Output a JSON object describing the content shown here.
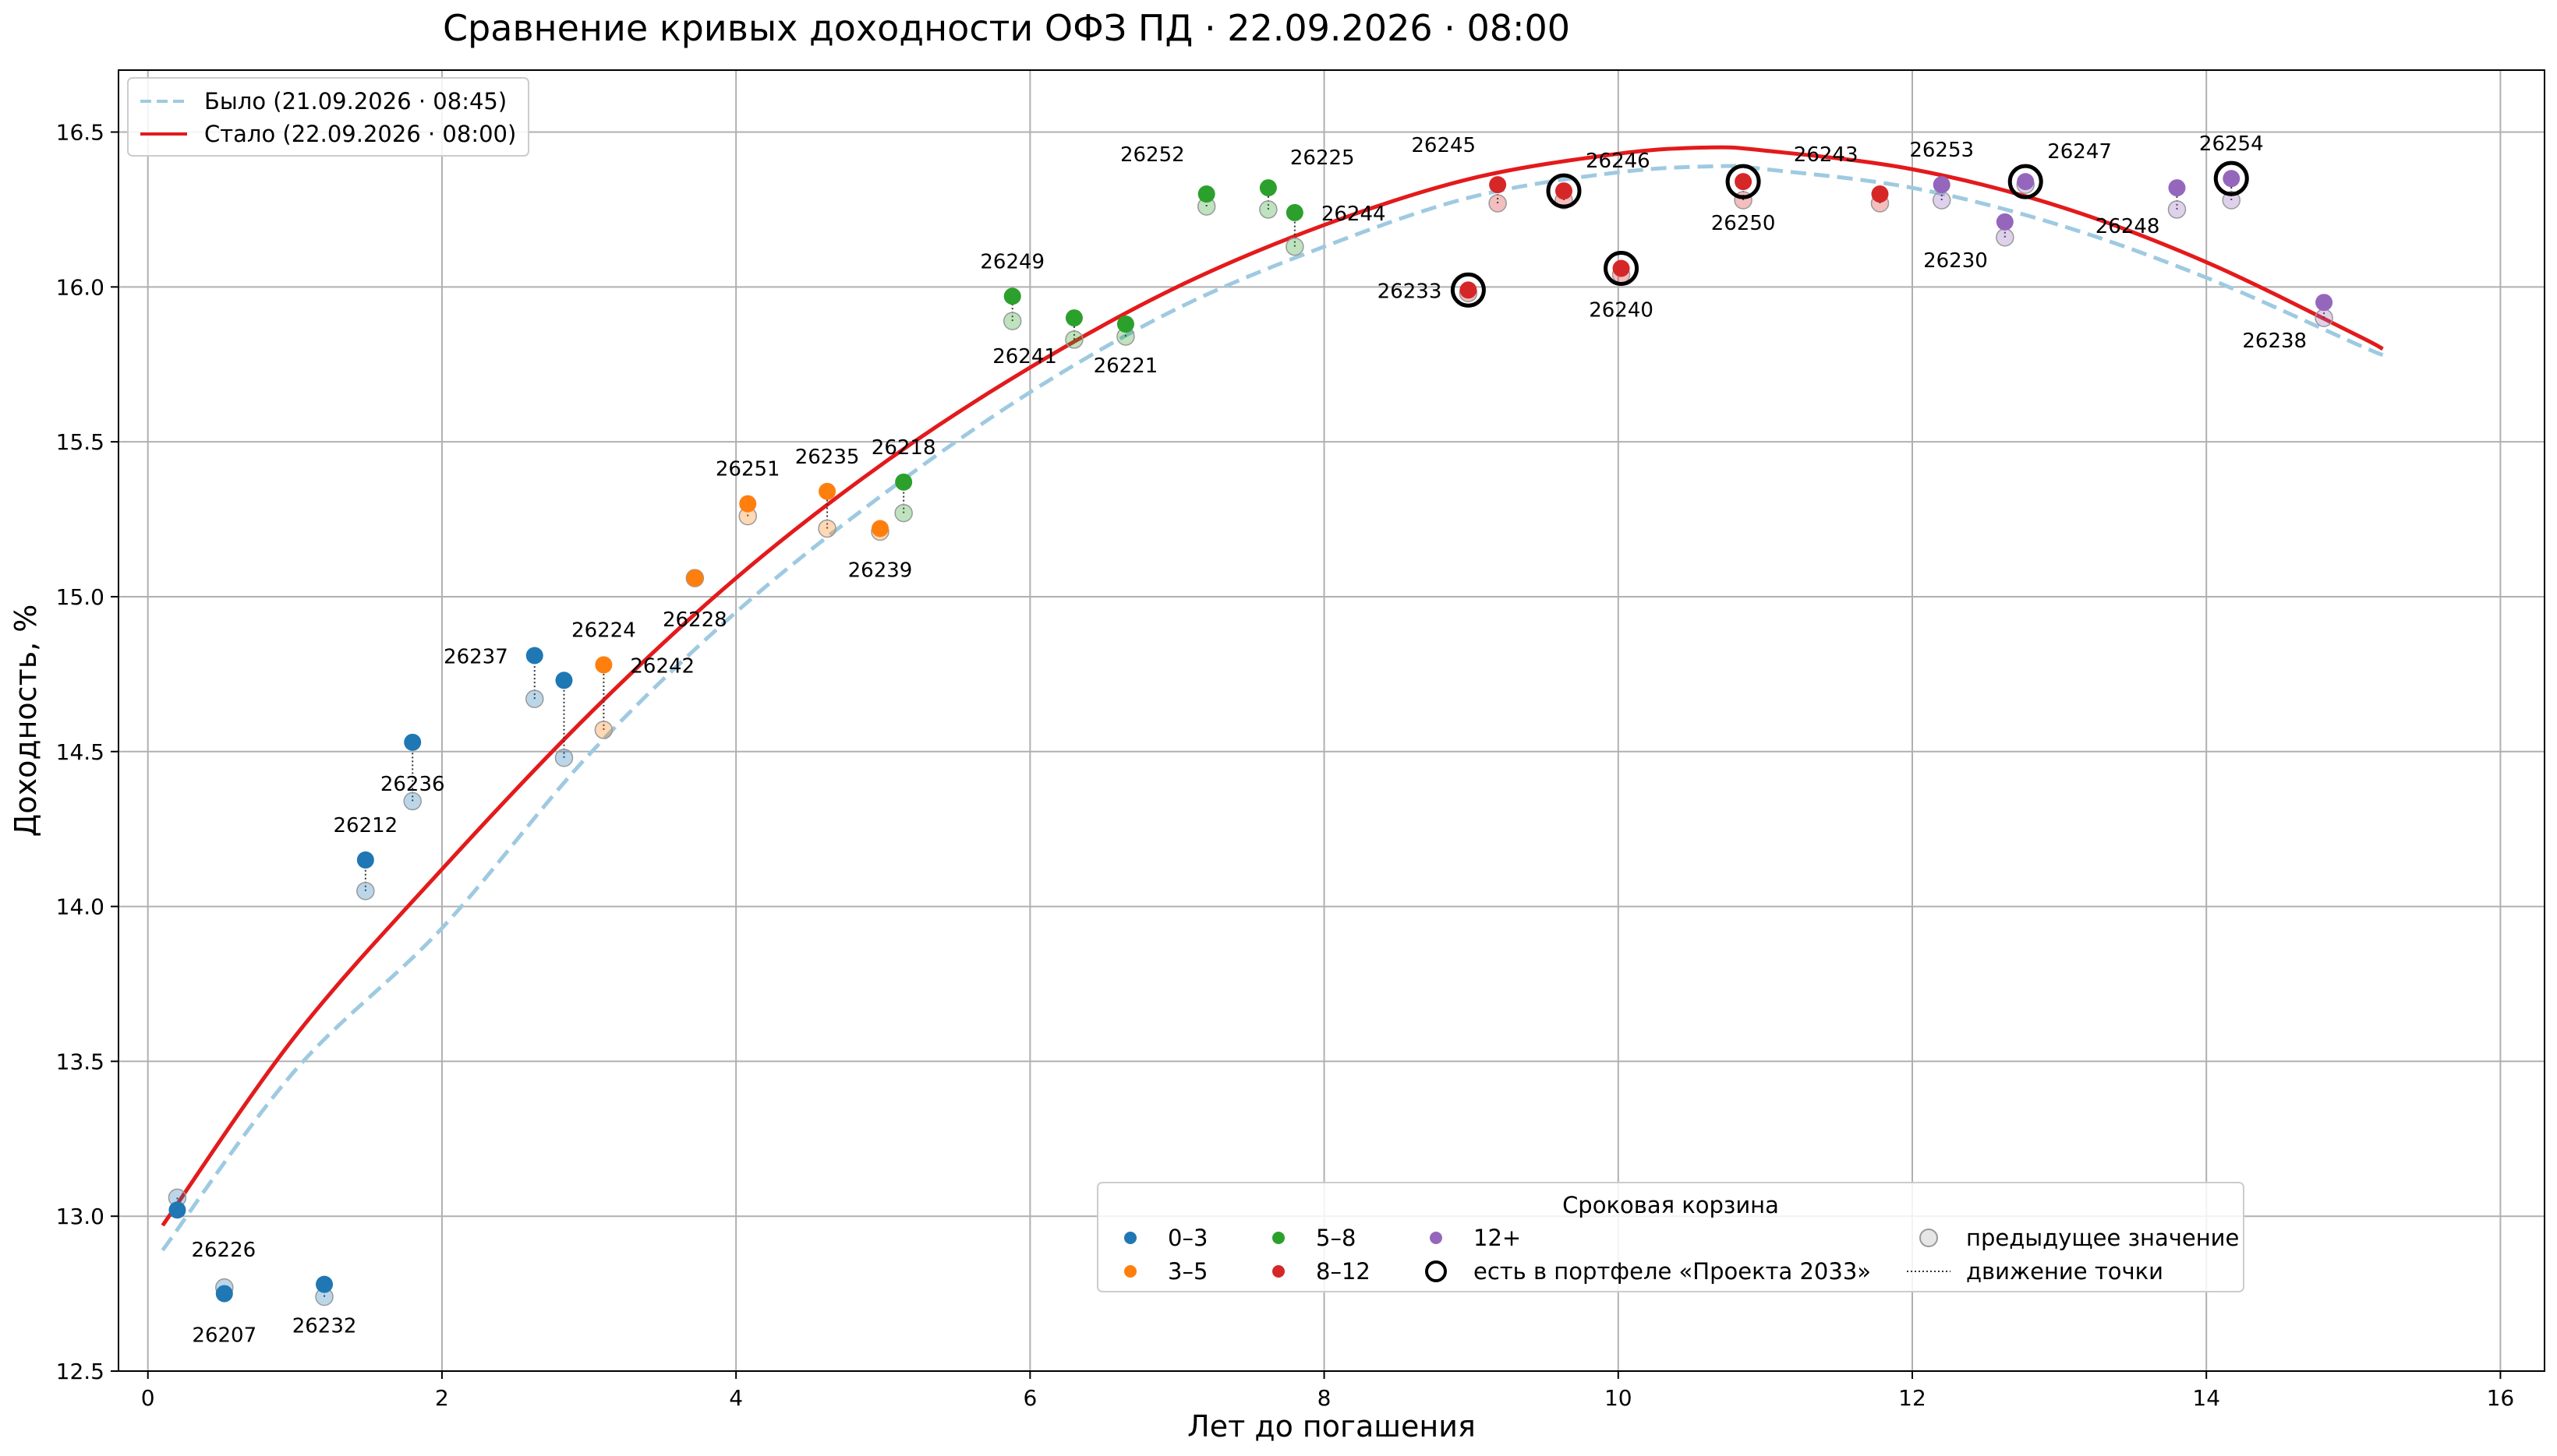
{
  "chart_data": {
    "type": "scatter",
    "title": "Сравнение кривых доходности ОФЗ ПД · 22.09.2026 · 08:00",
    "xlabel": "Лет до погашения",
    "ylabel": "Доходность, %",
    "xlim": [
      -0.2,
      16.3
    ],
    "ylim": [
      12.5,
      16.7
    ],
    "xticks": [
      "0",
      "2",
      "4",
      "6",
      "8",
      "10",
      "12",
      "14",
      "16"
    ],
    "xtick_values": [
      0,
      2,
      4,
      6,
      8,
      10,
      12,
      14,
      16
    ],
    "yticks": [
      "12.5",
      "13.0",
      "13.5",
      "14.0",
      "14.5",
      "15.0",
      "15.5",
      "16.0",
      "16.5"
    ],
    "ytick_values": [
      12.5,
      13.0,
      13.5,
      14.0,
      14.5,
      15.0,
      15.5,
      16.0,
      16.5
    ],
    "grid": true,
    "curves": [
      {
        "name": "Было (21.09.2026 · 08:45)",
        "style": "dashed",
        "color": "#9ecae1",
        "x": [
          0.1,
          1,
          2,
          3,
          4,
          5,
          6,
          7,
          8,
          9,
          10,
          10.7,
          11,
          12,
          13,
          14,
          15,
          15.2
        ],
        "y": [
          12.89,
          13.47,
          13.93,
          14.49,
          14.95,
          15.33,
          15.66,
          15.93,
          16.13,
          16.29,
          16.37,
          16.39,
          16.38,
          16.32,
          16.2,
          16.03,
          15.82,
          15.78
        ]
      },
      {
        "name": "Стало (22.09.2026 · 08:00)",
        "style": "solid",
        "color": "#e31a1c",
        "x": [
          0.1,
          1,
          2,
          3,
          4,
          5,
          6,
          7,
          8,
          9,
          10,
          10.6,
          11,
          12,
          13,
          14,
          15,
          15.2
        ],
        "y": [
          12.97,
          13.58,
          14.12,
          14.62,
          15.06,
          15.43,
          15.74,
          16.0,
          16.2,
          16.35,
          16.43,
          16.45,
          16.44,
          16.38,
          16.26,
          16.08,
          15.85,
          15.8
        ]
      }
    ],
    "points": [
      {
        "label": "26226",
        "x": 0.2,
        "prev": 13.06,
        "curr": 13.02,
        "bucket": "0–3",
        "label_pos": "below-right"
      },
      {
        "label": "26207",
        "x": 0.52,
        "prev": 12.77,
        "curr": 12.75,
        "bucket": "0–3",
        "label_pos": "below"
      },
      {
        "label": "26232",
        "x": 1.2,
        "prev": 12.74,
        "curr": 12.78,
        "bucket": "0–3",
        "label_pos": "below"
      },
      {
        "label": "26212",
        "x": 1.48,
        "prev": 14.05,
        "curr": 14.15,
        "bucket": "0–3",
        "label_pos": "above"
      },
      {
        "label": "26236",
        "x": 1.8,
        "prev": 14.34,
        "curr": 14.53,
        "bucket": "0–3",
        "label_pos": "below"
      },
      {
        "label": "26237",
        "x": 2.63,
        "prev": 14.67,
        "curr": 14.81,
        "bucket": "0–3",
        "label_pos": "left"
      },
      {
        "label": "",
        "x": 2.83,
        "prev": 14.48,
        "curr": 14.73,
        "bucket": "0–3",
        "label_pos": "none"
      },
      {
        "label": "26224",
        "x": 3.1,
        "prev": 14.57,
        "curr": 14.78,
        "bucket": "3–5",
        "label_pos": "above"
      },
      {
        "label": "26242",
        "x": 3.1,
        "prev": 14.57,
        "curr": 14.78,
        "bucket": "3–5",
        "label_pos": "right",
        "hidden": true
      },
      {
        "label": "26228",
        "x": 3.72,
        "prev": 15.06,
        "curr": 15.06,
        "bucket": "3–5",
        "label_pos": "below"
      },
      {
        "label": "26251",
        "x": 4.08,
        "prev": 15.26,
        "curr": 15.3,
        "bucket": "3–5",
        "label_pos": "above"
      },
      {
        "label": "26235",
        "x": 4.62,
        "prev": 15.22,
        "curr": 15.34,
        "bucket": "3–5",
        "label_pos": "above"
      },
      {
        "label": "26239",
        "x": 4.98,
        "prev": 15.21,
        "curr": 15.22,
        "bucket": "3–5",
        "label_pos": "below"
      },
      {
        "label": "26218",
        "x": 5.14,
        "prev": 15.27,
        "curr": 15.37,
        "bucket": "5–8",
        "label_pos": "above"
      },
      {
        "label": "26249",
        "x": 5.88,
        "prev": 15.89,
        "curr": 15.97,
        "bucket": "5–8",
        "label_pos": "above"
      },
      {
        "label": "26241",
        "x": 6.3,
        "prev": 15.83,
        "curr": 15.9,
        "bucket": "5–8",
        "label_pos": "below-left"
      },
      {
        "label": "26221",
        "x": 6.65,
        "prev": 15.84,
        "curr": 15.88,
        "bucket": "5–8",
        "label_pos": "below"
      },
      {
        "label": "26252",
        "x": 7.2,
        "prev": 16.26,
        "curr": 16.3,
        "bucket": "5–8",
        "label_pos": "above-left"
      },
      {
        "label": "26225",
        "x": 7.62,
        "prev": 16.25,
        "curr": 16.32,
        "bucket": "5–8",
        "label_pos": "above-right"
      },
      {
        "label": "26244",
        "x": 7.8,
        "prev": 16.13,
        "curr": 16.24,
        "bucket": "5–8",
        "label_pos": "right"
      },
      {
        "label": "26233",
        "x": 8.98,
        "prev": 15.98,
        "curr": 15.99,
        "bucket": "8–12",
        "label_pos": "left",
        "portfolio": true
      },
      {
        "label": "26245",
        "x": 9.18,
        "prev": 16.27,
        "curr": 16.33,
        "bucket": "8–12",
        "label_pos": "above-left"
      },
      {
        "label": "26246",
        "x": 9.63,
        "prev": 16.28,
        "curr": 16.31,
        "bucket": "8–12",
        "label_pos": "above-right",
        "portfolio": true
      },
      {
        "label": "26240",
        "x": 10.02,
        "prev": 16.04,
        "curr": 16.06,
        "bucket": "8–12",
        "label_pos": "below",
        "portfolio": true
      },
      {
        "label": "26250",
        "x": 10.85,
        "prev": 16.28,
        "curr": 16.34,
        "bucket": "8–12",
        "label_pos": "below",
        "portfolio": true
      },
      {
        "label": "26243",
        "x": 11.78,
        "prev": 16.27,
        "curr": 16.3,
        "bucket": "8–12",
        "label_pos": "above-left"
      },
      {
        "label": "26253",
        "x": 12.2,
        "prev": 16.28,
        "curr": 16.33,
        "bucket": "12+",
        "label_pos": "above"
      },
      {
        "label": "26230",
        "x": 12.63,
        "prev": 16.16,
        "curr": 16.21,
        "bucket": "12+",
        "label_pos": "below-left"
      },
      {
        "label": "26247",
        "x": 12.77,
        "prev": 16.33,
        "curr": 16.34,
        "bucket": "12+",
        "label_pos": "above-right",
        "portfolio": true
      },
      {
        "label": "26248",
        "x": 13.8,
        "prev": 16.25,
        "curr": 16.32,
        "bucket": "12+",
        "label_pos": "below-left"
      },
      {
        "label": "26254",
        "x": 14.17,
        "prev": 16.28,
        "curr": 16.35,
        "bucket": "12+",
        "label_pos": "above",
        "portfolio": true
      },
      {
        "label": "26238",
        "x": 14.8,
        "prev": 15.9,
        "curr": 15.95,
        "bucket": "12+",
        "label_pos": "below-left"
      }
    ],
    "buckets": [
      {
        "name": "0–3",
        "color": "#1f77b4"
      },
      {
        "name": "3–5",
        "color": "#ff7f0e"
      },
      {
        "name": "5–8",
        "color": "#2ca02c"
      },
      {
        "name": "8–12",
        "color": "#d62728"
      },
      {
        "name": "12+",
        "color": "#9467bd"
      }
    ],
    "legend_top": {
      "placement": "top-left",
      "entries": [
        "Было (21.09.2026 · 08:45)",
        "Стало (22.09.2026 · 08:00)"
      ]
    },
    "legend_bottom": {
      "placement": "lower-center",
      "title": "Сроковая корзина",
      "portfolio_label": "есть в портфеле «Проекта 2033»",
      "prev_label": "предыдущее значение",
      "move_label": "движение точки"
    }
  }
}
